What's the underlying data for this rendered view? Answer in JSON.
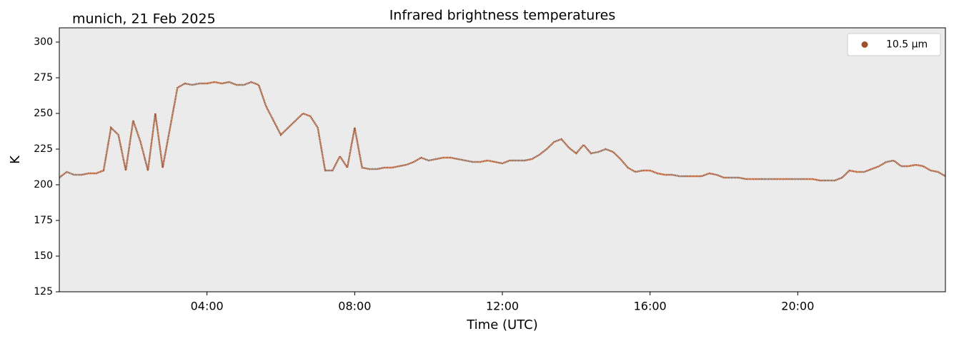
{
  "chart_data": {
    "type": "line",
    "title": "Infrared brightness temperatures",
    "subtitle": "munich, 21 Feb 2025",
    "x_label": "Time (UTC)",
    "y_label": "K",
    "xlim": [
      0,
      24
    ],
    "ylim": [
      125,
      310
    ],
    "xticks": [
      {
        "value": 4,
        "label": "04:00"
      },
      {
        "value": 8,
        "label": "08:00"
      },
      {
        "value": 12,
        "label": "12:00"
      },
      {
        "value": 16,
        "label": "16:00"
      },
      {
        "value": 20,
        "label": "20:00"
      }
    ],
    "yticks": [
      125,
      150,
      175,
      200,
      225,
      250,
      275,
      300
    ],
    "legend": "upper right",
    "x": [
      0,
      0.2,
      0.4,
      0.6,
      0.8,
      1,
      1.2,
      1.4,
      1.6,
      1.8,
      2,
      2.2,
      2.4,
      2.6,
      2.8,
      3,
      3.2,
      3.4,
      3.6,
      3.8,
      4,
      4.2,
      4.4,
      4.6,
      4.8,
      5,
      5.2,
      5.4,
      5.6,
      5.8,
      6,
      6.2,
      6.4,
      6.6,
      6.8,
      7,
      7.2,
      7.4,
      7.6,
      7.8,
      8,
      8.2,
      8.4,
      8.6,
      8.8,
      9,
      9.2,
      9.4,
      9.6,
      9.8,
      10,
      10.2,
      10.4,
      10.6,
      10.8,
      11,
      11.2,
      11.4,
      11.6,
      11.8,
      12,
      12.2,
      12.4,
      12.6,
      12.8,
      13,
      13.2,
      13.4,
      13.6,
      13.8,
      14,
      14.2,
      14.4,
      14.6,
      14.8,
      15,
      15.2,
      15.4,
      15.6,
      15.8,
      16,
      16.2,
      16.4,
      16.6,
      16.8,
      17,
      17.2,
      17.4,
      17.6,
      17.8,
      18,
      18.2,
      18.4,
      18.6,
      18.8,
      19,
      19.2,
      19.4,
      19.6,
      19.8,
      20,
      20.2,
      20.4,
      20.6,
      20.8,
      21,
      21.2,
      21.4,
      21.6,
      21.8,
      22,
      22.2,
      22.4,
      22.6,
      22.8,
      23,
      23.2,
      23.4,
      23.6,
      23.8,
      24
    ],
    "series": [
      {
        "name": "10.5 µm",
        "color": "#a0522d",
        "values": [
          205,
          209,
          207,
          207,
          208,
          208,
          210,
          240,
          235,
          210,
          245,
          230,
          210,
          250,
          212,
          240,
          268,
          271,
          270,
          271,
          271,
          272,
          271,
          272,
          270,
          270,
          272,
          270,
          255,
          245,
          235,
          240,
          245,
          250,
          248,
          240,
          210,
          210,
          220,
          212,
          240,
          212,
          211,
          211,
          212,
          212,
          213,
          214,
          216,
          219,
          217,
          218,
          219,
          219,
          218,
          217,
          216,
          216,
          217,
          216,
          215,
          217,
          217,
          217,
          218,
          221,
          225,
          230,
          232,
          226,
          222,
          228,
          222,
          223,
          225,
          223,
          218,
          212,
          209,
          210,
          210,
          208,
          207,
          207,
          206,
          206,
          206,
          206,
          208,
          207,
          205,
          205,
          205,
          204,
          204,
          204,
          204,
          204,
          204,
          204,
          204,
          204,
          204,
          203,
          203,
          203,
          205,
          210,
          209,
          209,
          211,
          213,
          216,
          217,
          213,
          213,
          214,
          213,
          210,
          209,
          206
        ]
      }
    ]
  }
}
